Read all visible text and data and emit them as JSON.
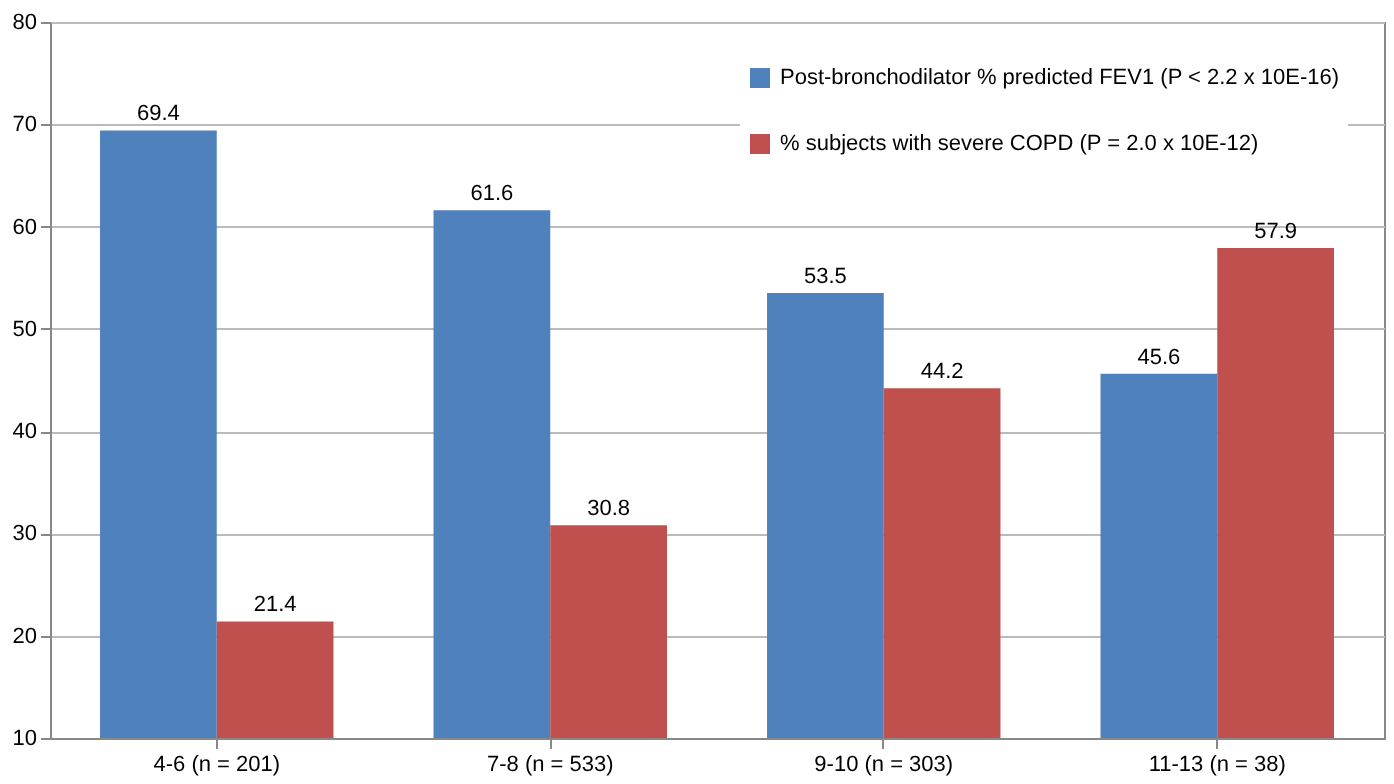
{
  "chart_data": {
    "type": "bar",
    "categories": [
      "4-6 (n = 201)",
      "7-8 (n = 533)",
      "9-10 (n = 303)",
      "11-13 (n = 38)"
    ],
    "series": [
      {
        "name": "Post-bronchodilator % predicted FEV1 (P < 2.2 x 10E-16)",
        "color": "#4f81bd",
        "values": [
          69.4,
          61.6,
          53.5,
          45.6
        ]
      },
      {
        "name": "% subjects with severe COPD (P = 2.0 x 10E-12)",
        "color": "#c0504d",
        "values": [
          21.4,
          30.8,
          44.2,
          57.9
        ]
      }
    ],
    "ylim": [
      10,
      80
    ],
    "yticks": [
      10,
      20,
      30,
      40,
      50,
      60,
      70,
      80
    ],
    "grid": "y",
    "legend": "top right",
    "data_labels": true
  }
}
